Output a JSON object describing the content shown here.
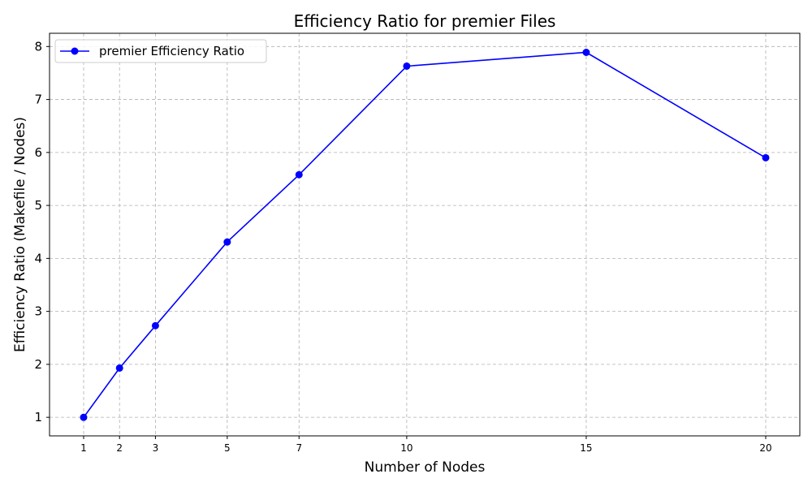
{
  "chart_data": {
    "type": "line",
    "title": "Efficiency Ratio for premier Files",
    "xlabel": "Number of Nodes",
    "ylabel": "Efficiency Ratio (Makefile / Nodes)",
    "x": [
      1,
      2,
      3,
      5,
      7,
      10,
      15,
      20
    ],
    "xticks": [
      1,
      2,
      3,
      5,
      7,
      10,
      15,
      20
    ],
    "yticks": [
      1,
      2,
      3,
      4,
      5,
      6,
      7,
      8
    ],
    "xlim": [
      0.05,
      20.95
    ],
    "ylim": [
      0.65,
      8.25
    ],
    "grid": true,
    "legend_position": "top-left",
    "series": [
      {
        "name": "premier Efficiency Ratio",
        "color": "#0000ff",
        "marker": "circle",
        "values": [
          1.0,
          1.93,
          2.73,
          4.31,
          5.58,
          7.63,
          7.89,
          5.9
        ]
      }
    ]
  }
}
